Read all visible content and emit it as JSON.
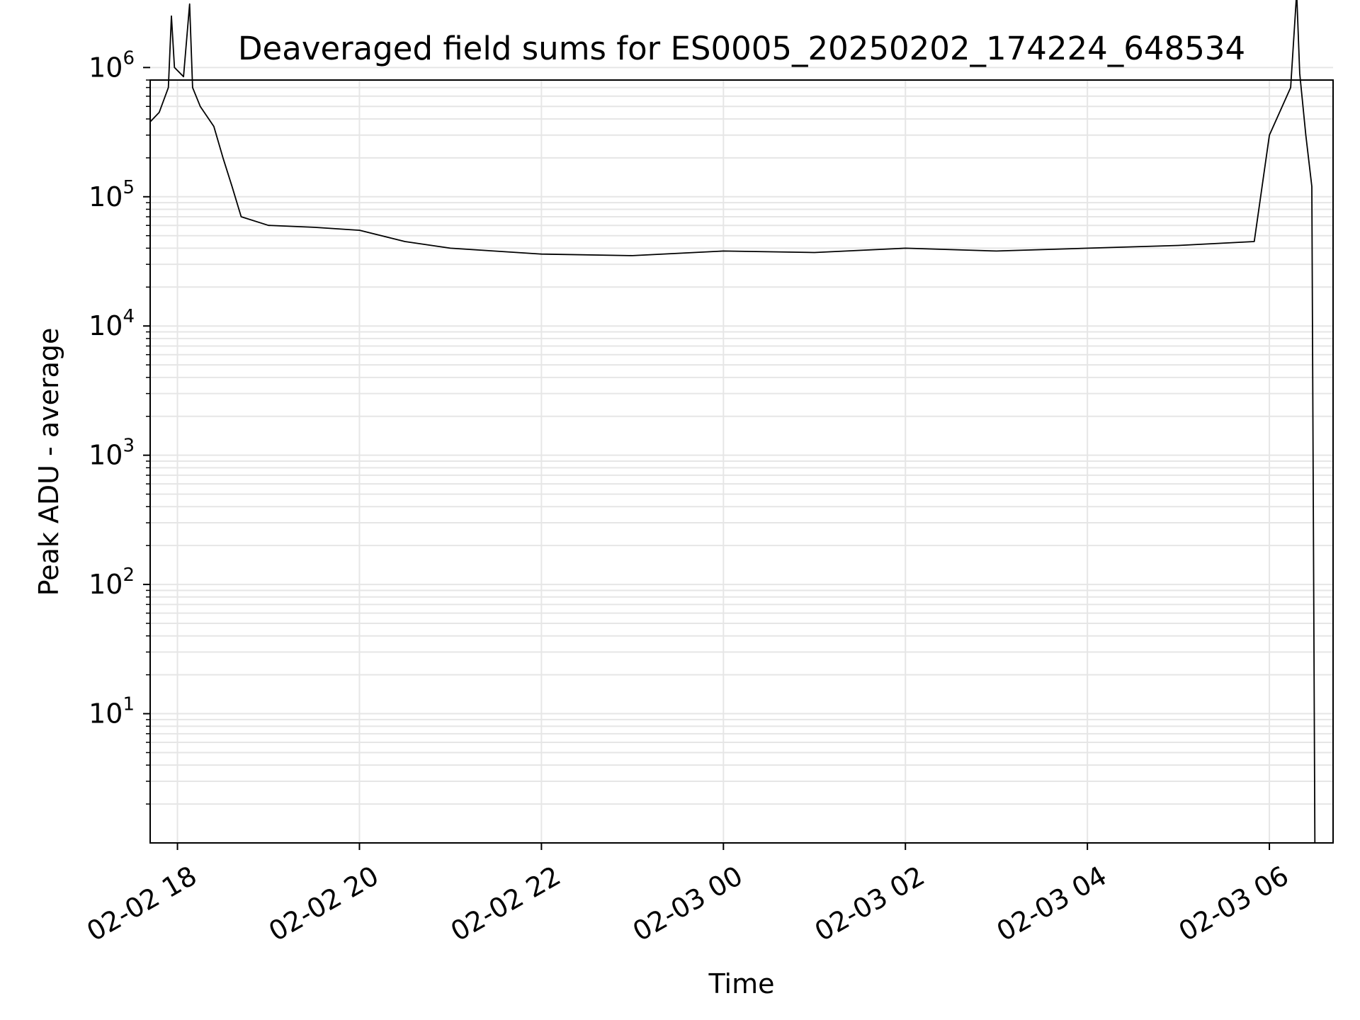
{
  "chart_data": {
    "type": "line",
    "title": "Deaveraged field sums for ES0005_20250202_174224_648534",
    "xlabel": "Time",
    "ylabel": "Peak ADU - average",
    "yscale": "log",
    "ylim": [
      1,
      800000
    ],
    "xlim": [
      "2025-02-02 17:42",
      "2025-02-03 06:42"
    ],
    "x_ticks": [
      {
        "t": "2025-02-02 18:00",
        "label": "02-02 18"
      },
      {
        "t": "2025-02-02 20:00",
        "label": "02-02 20"
      },
      {
        "t": "2025-02-02 22:00",
        "label": "02-02 22"
      },
      {
        "t": "2025-02-03 00:00",
        "label": "02-03 00"
      },
      {
        "t": "2025-02-03 02:00",
        "label": "02-03 02"
      },
      {
        "t": "2025-02-03 04:00",
        "label": "02-03 04"
      },
      {
        "t": "2025-02-03 06:00",
        "label": "02-03 06"
      }
    ],
    "y_ticks": [
      {
        "value": 10,
        "label_base": "10",
        "label_exp": "1"
      },
      {
        "value": 100,
        "label_base": "10",
        "label_exp": "2"
      },
      {
        "value": 1000,
        "label_base": "10",
        "label_exp": "3"
      },
      {
        "value": 10000,
        "label_base": "10",
        "label_exp": "4"
      },
      {
        "value": 100000,
        "label_base": "10",
        "label_exp": "5"
      },
      {
        "value": 1000000,
        "label_base": "10",
        "label_exp": "6"
      }
    ],
    "grid": true,
    "line_color": "#000000",
    "grid_color": "#e6e6e6",
    "series": [
      {
        "points": [
          [
            "2025-02-02 17:42",
            380000
          ],
          [
            "2025-02-02 17:48",
            450000
          ],
          [
            "2025-02-02 17:54",
            700000
          ],
          [
            "2025-02-02 17:56",
            2500000
          ],
          [
            "2025-02-02 17:58",
            1000000
          ],
          [
            "2025-02-02 18:04",
            850000
          ],
          [
            "2025-02-02 18:08",
            3100000
          ],
          [
            "2025-02-02 18:10",
            700000
          ],
          [
            "2025-02-02 18:15",
            500000
          ],
          [
            "2025-02-02 18:24",
            350000
          ],
          [
            "2025-02-02 18:30",
            200000
          ],
          [
            "2025-02-02 18:36",
            120000
          ],
          [
            "2025-02-02 18:42",
            70000
          ],
          [
            "2025-02-02 19:00",
            60000
          ],
          [
            "2025-02-02 19:30",
            58000
          ],
          [
            "2025-02-02 20:00",
            55000
          ],
          [
            "2025-02-02 20:30",
            45000
          ],
          [
            "2025-02-02 21:00",
            40000
          ],
          [
            "2025-02-02 22:00",
            36000
          ],
          [
            "2025-02-02 23:00",
            35000
          ],
          [
            "2025-02-03 00:00",
            38000
          ],
          [
            "2025-02-03 01:00",
            37000
          ],
          [
            "2025-02-03 02:00",
            40000
          ],
          [
            "2025-02-03 03:00",
            38000
          ],
          [
            "2025-02-03 04:00",
            40000
          ],
          [
            "2025-02-03 05:00",
            42000
          ],
          [
            "2025-02-03 05:50",
            45000
          ],
          [
            "2025-02-03 06:00",
            300000
          ],
          [
            "2025-02-03 06:14",
            700000
          ],
          [
            "2025-02-03 06:18",
            3800000
          ],
          [
            "2025-02-03 06:20",
            900000
          ],
          [
            "2025-02-03 06:24",
            300000
          ],
          [
            "2025-02-03 06:28",
            120000
          ],
          [
            "2025-02-03 06:30",
            1
          ]
        ]
      }
    ]
  }
}
